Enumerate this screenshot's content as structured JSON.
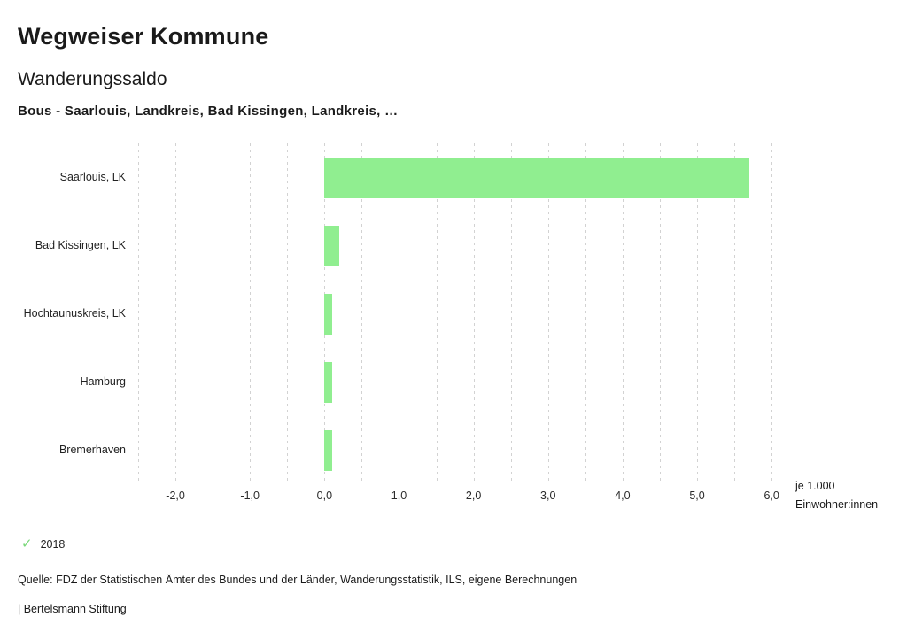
{
  "header": {
    "title": "Wegweiser Kommune",
    "subtitle": "Wanderungssaldo",
    "description": "Bous - Saarlouis, Landkreis, Bad Kissingen, Landkreis, …"
  },
  "chart_data": {
    "type": "bar",
    "orientation": "horizontal",
    "title": "Wanderungssaldo",
    "categories": [
      "Saarlouis, LK",
      "Bad Kissingen, LK",
      "Hochtaunuskreis, LK",
      "Hamburg",
      "Bremerhaven"
    ],
    "series": [
      {
        "name": "2018",
        "color": "#90ee90",
        "values": [
          5.7,
          0.2,
          0.1,
          0.1,
          0.1
        ]
      }
    ],
    "xlim": [
      -2.5,
      6.2
    ],
    "x_ticks": [
      -2.0,
      -1.0,
      0.0,
      1.0,
      2.0,
      3.0,
      4.0,
      5.0,
      6.0
    ],
    "x_tick_labels": [
      "-2,0",
      "-1,0",
      "0,0",
      "1,0",
      "2,0",
      "3,0",
      "4,0",
      "5,0",
      "6,0"
    ],
    "grid": true,
    "grid_step": 0.5,
    "xlabel": "je 1.000 Einwohner:innen",
    "unit_lines": [
      "je 1.000",
      "Einwohner:innen"
    ],
    "legend_position": "bottom-left"
  },
  "legend": {
    "check_color": "#7bd87b",
    "items": [
      {
        "label": "2018"
      }
    ]
  },
  "footer": {
    "source": "Quelle: FDZ der Statistischen Ämter des Bundes und der Länder, Wanderungsstatistik, ILS, eigene Berechnungen",
    "attribution": "| Bertelsmann Stiftung"
  }
}
